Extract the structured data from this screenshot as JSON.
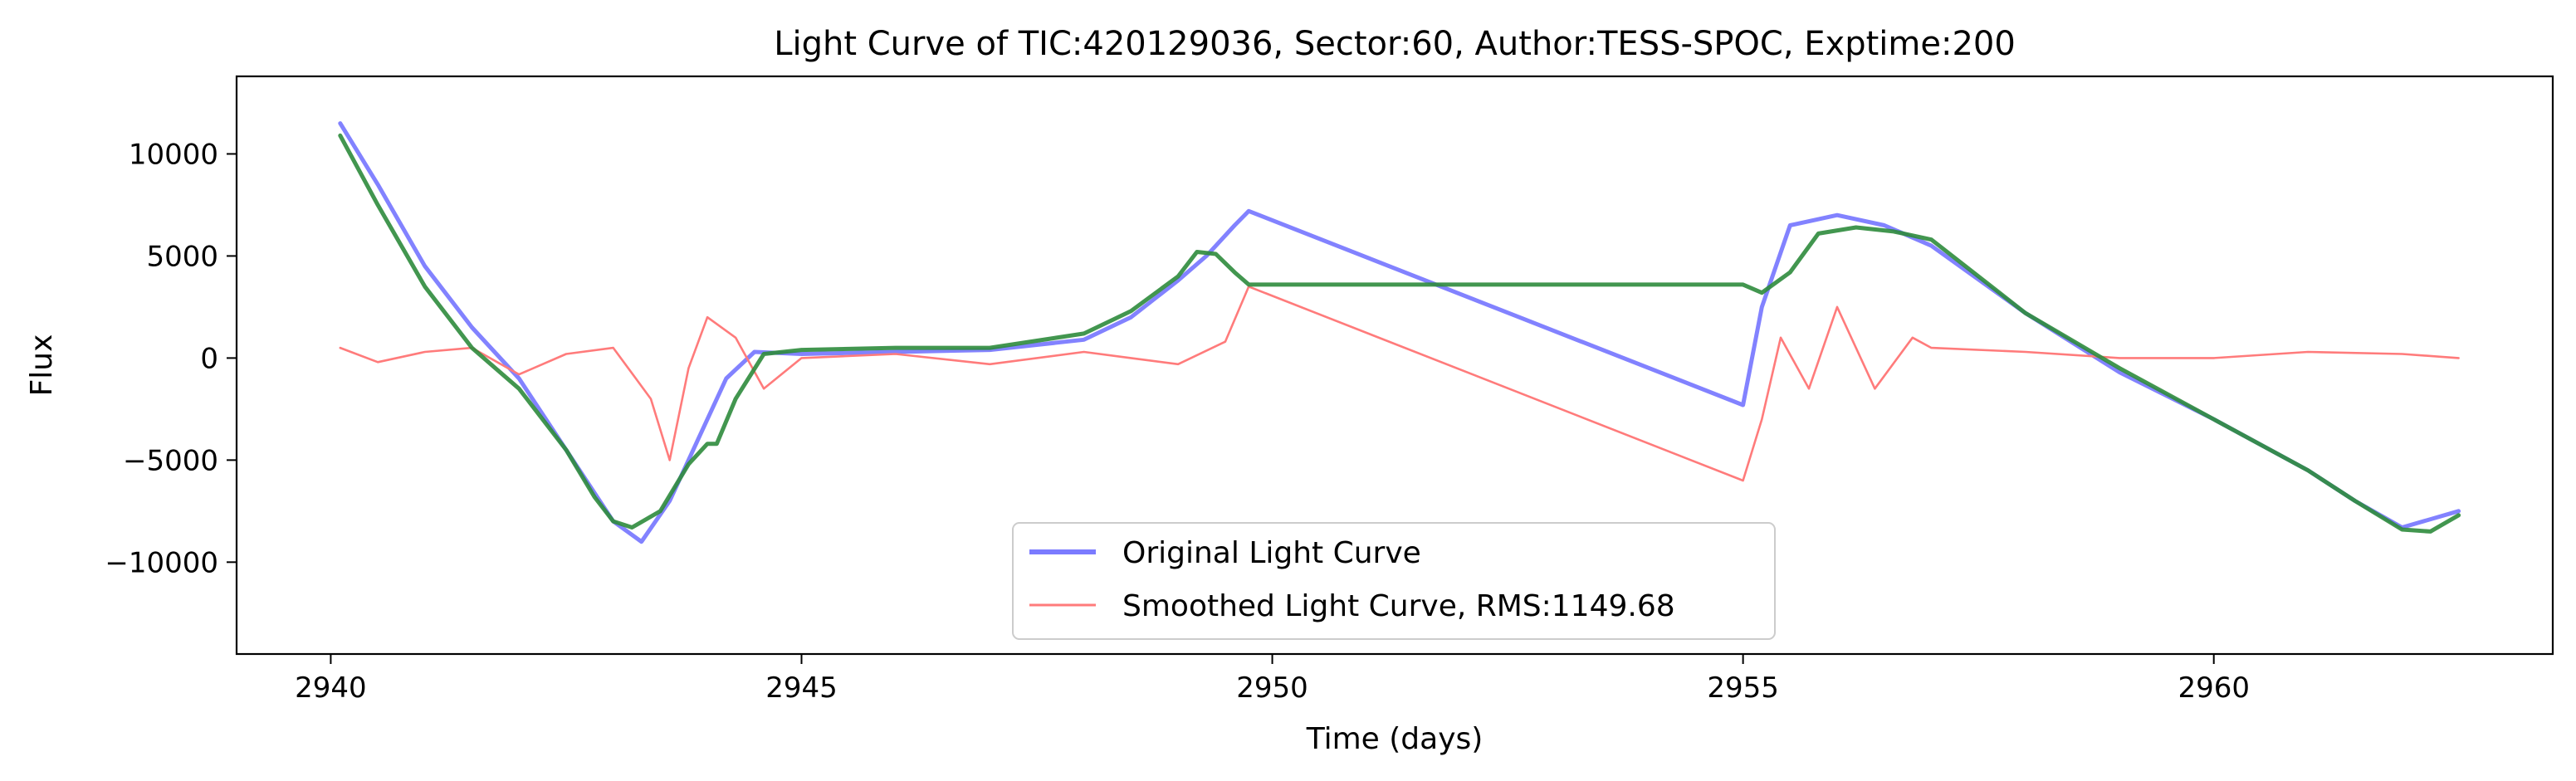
{
  "chart_data": {
    "type": "line",
    "title": "Light Curve of TIC:420129036, Sector:60, Author:TESS-SPOC, Exptime:200",
    "xlabel": "Time (days)",
    "ylabel": "Flux",
    "xlim": [
      2939.0,
      2963.6
    ],
    "ylim": [
      -14500,
      13800
    ],
    "xticks": [
      2940,
      2945,
      2950,
      2955,
      2960
    ],
    "yticks": [
      -10000,
      -5000,
      0,
      5000,
      10000
    ],
    "ytick_labels": [
      "−10000",
      "−5000",
      "0",
      "5000",
      "10000"
    ],
    "grid": false,
    "legend_position": "bottom-center",
    "legend": [
      {
        "label": "Original Light Curve",
        "color": "#7b7bff"
      },
      {
        "label": "Smoothed Light Curve, RMS:1149.68",
        "color": "#ff7b7b"
      }
    ],
    "series": [
      {
        "name": "Original Light Curve",
        "color": "#7b7bff",
        "x": [
          2940.1,
          2940.5,
          2941.0,
          2941.5,
          2942.0,
          2942.5,
          2943.0,
          2943.3,
          2943.6,
          2943.9,
          2944.2,
          2944.5,
          2945.0,
          2946.0,
          2947.0,
          2948.0,
          2948.5,
          2949.0,
          2949.3,
          2949.6,
          2949.75,
          2955.0,
          2955.2,
          2955.5,
          2956.0,
          2956.5,
          2957.0,
          2958.0,
          2959.0,
          2960.0,
          2961.0,
          2961.5,
          2962.0,
          2962.6
        ],
        "y": [
          11500,
          8500,
          4500,
          1500,
          -1000,
          -4500,
          -8000,
          -9000,
          -7000,
          -4000,
          -1000,
          300,
          200,
          300,
          400,
          900,
          2000,
          3800,
          5000,
          6500,
          7200,
          -2300,
          2500,
          6500,
          7000,
          6500,
          5500,
          2200,
          -700,
          -3000,
          -5500,
          -7000,
          -8300,
          -7500
        ]
      },
      {
        "name": "Smoothed Light Curve, RMS:1149.68",
        "color": "#ff7b7b",
        "x": [
          2940.1,
          2940.5,
          2941.0,
          2941.5,
          2942.0,
          2942.5,
          2943.0,
          2943.4,
          2943.6,
          2943.8,
          2944.0,
          2944.3,
          2944.6,
          2945.0,
          2946.0,
          2947.0,
          2948.0,
          2948.5,
          2949.0,
          2949.5,
          2949.75,
          2955.0,
          2955.2,
          2955.4,
          2955.7,
          2956.0,
          2956.4,
          2956.8,
          2957.0,
          2958.0,
          2959.0,
          2960.0,
          2961.0,
          2962.0,
          2962.6
        ],
        "y": [
          500,
          -200,
          300,
          500,
          -800,
          200,
          500,
          -2000,
          -5000,
          -500,
          2000,
          1000,
          -1500,
          0,
          200,
          -300,
          300,
          0,
          -300,
          800,
          3500,
          -6000,
          -3000,
          1000,
          -1500,
          2500,
          -1500,
          1000,
          500,
          300,
          0,
          0,
          300,
          200,
          0
        ]
      },
      {
        "name": "",
        "color": "#2e8b3c",
        "x": [
          2940.1,
          2940.5,
          2941.0,
          2941.5,
          2942.0,
          2942.5,
          2942.8,
          2943.0,
          2943.2,
          2943.5,
          2943.8,
          2944.0,
          2944.1,
          2944.3,
          2944.6,
          2945.0,
          2946.0,
          2947.0,
          2948.0,
          2948.5,
          2949.0,
          2949.2,
          2949.4,
          2949.6,
          2949.75,
          2955.0,
          2955.2,
          2955.5,
          2955.8,
          2956.2,
          2956.6,
          2957.0,
          2958.0,
          2959.0,
          2960.0,
          2961.0,
          2961.5,
          2962.0,
          2962.3,
          2962.6
        ],
        "y": [
          10900,
          7500,
          3500,
          500,
          -1500,
          -4500,
          -6800,
          -8000,
          -8300,
          -7500,
          -5200,
          -4200,
          -4200,
          -2000,
          200,
          400,
          500,
          500,
          1200,
          2300,
          4000,
          5200,
          5100,
          4200,
          3600,
          3600,
          3200,
          4200,
          6100,
          6400,
          6200,
          5800,
          2200,
          -500,
          -3000,
          -5500,
          -7000,
          -8400,
          -8500,
          -7700
        ]
      }
    ]
  }
}
